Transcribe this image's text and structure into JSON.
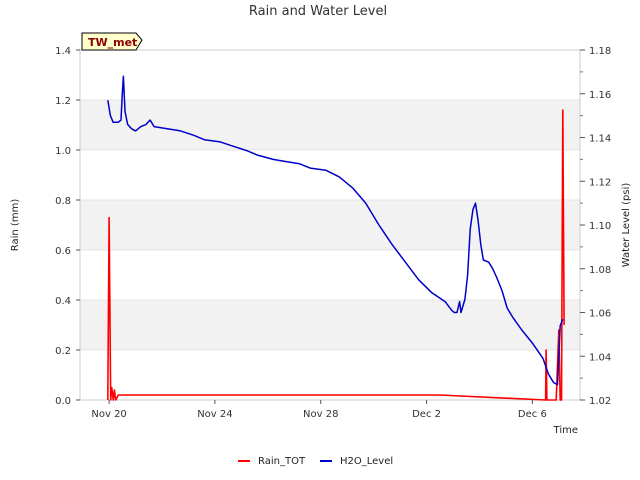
{
  "chart_data": {
    "type": "line",
    "title": "Rain and Water Level",
    "station_label": "TW_met",
    "xlabel": "Time",
    "ylabel_left": "Rain (mm)",
    "ylabel_right": "Water Level (psi)",
    "x_unit": "days since Nov 20",
    "xlim": [
      -1.1,
      17.8
    ],
    "ylim_left": [
      0,
      1.4
    ],
    "ylim_right": [
      1.02,
      1.18
    ],
    "x_ticks": [
      {
        "value": 0,
        "label": "Nov 20"
      },
      {
        "value": 4,
        "label": "Nov 24"
      },
      {
        "value": 8,
        "label": "Nov 28"
      },
      {
        "value": 12,
        "label": "Dec 2"
      },
      {
        "value": 16,
        "label": "Dec 6"
      }
    ],
    "y_ticks_left": [
      "0.0",
      "0.2",
      "0.4",
      "0.6",
      "0.8",
      "1.0",
      "1.2",
      "1.4"
    ],
    "y_ticks_right": [
      "1.02",
      "1.04",
      "1.06",
      "1.08",
      "1.10",
      "1.12",
      "1.14",
      "1.16",
      "1.18"
    ],
    "bands": [
      [
        0.2,
        0.4
      ],
      [
        0.6,
        0.8
      ],
      [
        1.0,
        1.2
      ]
    ],
    "series": [
      {
        "name": "Rain_TOT",
        "axis": "left",
        "color": "#ff0000",
        "points": [
          [
            -0.05,
            0.0
          ],
          [
            0.0,
            0.73
          ],
          [
            0.06,
            0.0
          ],
          [
            0.1,
            0.05
          ],
          [
            0.16,
            0.0
          ],
          [
            0.2,
            0.04
          ],
          [
            0.25,
            0.0
          ],
          [
            0.35,
            0.02
          ],
          [
            0.5,
            0.02
          ],
          [
            0.65,
            0.02
          ],
          [
            0.8,
            0.02
          ],
          [
            0.95,
            0.02
          ],
          [
            1.1,
            0.02
          ],
          [
            1.3,
            0.02
          ],
          [
            3.0,
            0.02
          ],
          [
            3.5,
            0.02
          ],
          [
            3.7,
            0.02
          ],
          [
            4.4,
            0.02
          ],
          [
            4.7,
            0.02
          ],
          [
            5.2,
            0.02
          ],
          [
            5.5,
            0.02
          ],
          [
            6.7,
            0.02
          ],
          [
            7.2,
            0.02
          ],
          [
            7.6,
            0.02
          ],
          [
            8.2,
            0.02
          ],
          [
            8.5,
            0.02
          ],
          [
            8.7,
            0.02
          ],
          [
            8.9,
            0.02
          ],
          [
            9.1,
            0.02
          ],
          [
            9.3,
            0.02
          ],
          [
            9.5,
            0.02
          ],
          [
            9.7,
            0.02
          ],
          [
            9.9,
            0.02
          ],
          [
            10.1,
            0.02
          ],
          [
            10.3,
            0.02
          ],
          [
            10.7,
            0.02
          ],
          [
            11.0,
            0.02
          ],
          [
            12.5,
            0.02
          ],
          [
            16.5,
            0.0
          ],
          [
            16.52,
            0.2
          ],
          [
            16.55,
            0.0
          ],
          [
            16.9,
            0.0
          ],
          [
            17.0,
            0.28
          ],
          [
            17.05,
            0.0
          ],
          [
            17.1,
            0.0
          ],
          [
            17.15,
            1.16
          ],
          [
            17.2,
            0.3
          ]
        ]
      },
      {
        "name": "H2O_Level",
        "axis": "right",
        "color": "#0000cc",
        "points": [
          [
            -0.05,
            1.157
          ],
          [
            0.05,
            1.15
          ],
          [
            0.15,
            1.147
          ],
          [
            0.35,
            1.147
          ],
          [
            0.45,
            1.148
          ],
          [
            0.5,
            1.16
          ],
          [
            0.54,
            1.168
          ],
          [
            0.6,
            1.152
          ],
          [
            0.7,
            1.146
          ],
          [
            0.85,
            1.144
          ],
          [
            1.0,
            1.143
          ],
          [
            1.2,
            1.145
          ],
          [
            1.4,
            1.146
          ],
          [
            1.55,
            1.148
          ],
          [
            1.7,
            1.145
          ],
          [
            2.2,
            1.144
          ],
          [
            2.7,
            1.143
          ],
          [
            3.2,
            1.141
          ],
          [
            3.6,
            1.139
          ],
          [
            4.2,
            1.138
          ],
          [
            4.7,
            1.136
          ],
          [
            5.2,
            1.134
          ],
          [
            5.6,
            1.132
          ],
          [
            6.2,
            1.13
          ],
          [
            6.7,
            1.129
          ],
          [
            7.2,
            1.128
          ],
          [
            7.6,
            1.126
          ],
          [
            8.2,
            1.125
          ],
          [
            8.7,
            1.122
          ],
          [
            9.2,
            1.117
          ],
          [
            9.7,
            1.11
          ],
          [
            10.2,
            1.1
          ],
          [
            10.7,
            1.091
          ],
          [
            11.2,
            1.083
          ],
          [
            11.7,
            1.075
          ],
          [
            12.2,
            1.069
          ],
          [
            12.7,
            1.065
          ],
          [
            12.95,
            1.061
          ],
          [
            13.05,
            1.06
          ],
          [
            13.15,
            1.06
          ],
          [
            13.25,
            1.065
          ],
          [
            13.3,
            1.06
          ],
          [
            13.45,
            1.066
          ],
          [
            13.55,
            1.077
          ],
          [
            13.65,
            1.098
          ],
          [
            13.75,
            1.107
          ],
          [
            13.85,
            1.11
          ],
          [
            13.95,
            1.102
          ],
          [
            14.05,
            1.091
          ],
          [
            14.15,
            1.084
          ],
          [
            14.35,
            1.083
          ],
          [
            14.5,
            1.08
          ],
          [
            14.65,
            1.076
          ],
          [
            14.85,
            1.07
          ],
          [
            15.05,
            1.062
          ],
          [
            15.25,
            1.058
          ],
          [
            15.6,
            1.052
          ],
          [
            16.0,
            1.046
          ],
          [
            16.4,
            1.039
          ],
          [
            16.6,
            1.032
          ],
          [
            16.8,
            1.028
          ],
          [
            16.95,
            1.027
          ],
          [
            17.05,
            1.054
          ],
          [
            17.15,
            1.057
          ]
        ]
      }
    ],
    "legend": [
      {
        "name": "Rain_TOT",
        "color": "#ff0000"
      },
      {
        "name": "H2O_Level",
        "color": "#0000cc"
      }
    ]
  }
}
